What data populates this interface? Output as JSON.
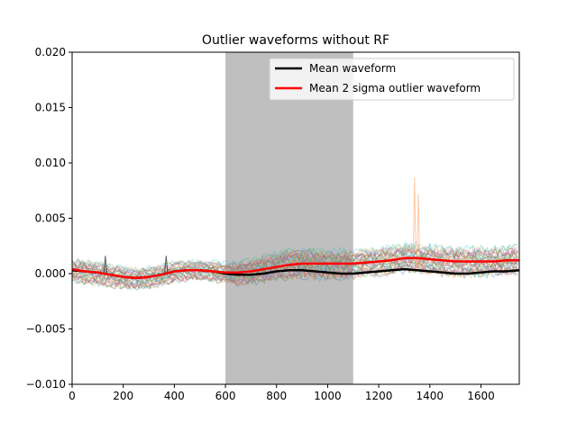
{
  "chart_data": {
    "type": "line",
    "title": "Outlier waveforms without RF",
    "xlabel": "",
    "ylabel": "",
    "xlim": [
      0,
      1750
    ],
    "ylim": [
      -0.01,
      0.02
    ],
    "x_ticks": [
      "0",
      "200",
      "400",
      "600",
      "800",
      "1000",
      "1200",
      "1400",
      "1600"
    ],
    "x_tick_values": [
      0,
      200,
      400,
      600,
      800,
      1000,
      1200,
      1400,
      1600
    ],
    "y_ticks": [
      "−0.010",
      "−0.005",
      "0.000",
      "0.005",
      "0.010",
      "0.015",
      "0.020"
    ],
    "y_tick_values": [
      -0.01,
      -0.005,
      0.0,
      0.005,
      0.01,
      0.015,
      0.02
    ],
    "grid": false,
    "legend_position": "top-right",
    "shaded_region": {
      "x_start": 600,
      "x_end": 1100,
      "color": "#bfbfbf"
    },
    "series": [
      {
        "name": "Mean waveform",
        "color": "#000000",
        "x": [
          0,
          50,
          100,
          150,
          200,
          250,
          300,
          350,
          400,
          450,
          500,
          550,
          600,
          650,
          700,
          750,
          800,
          850,
          900,
          950,
          1000,
          1050,
          1100,
          1150,
          1200,
          1250,
          1300,
          1350,
          1400,
          1450,
          1500,
          1550,
          1600,
          1650,
          1700,
          1750
        ],
        "y": [
          0.0003,
          0.0002,
          0.0001,
          -0.0001,
          -0.0003,
          -0.0004,
          -0.0003,
          -0.0001,
          0.0002,
          0.0003,
          0.0003,
          0.0002,
          0.0,
          -0.0001,
          -0.0001,
          0.0,
          0.0002,
          0.0003,
          0.0003,
          0.0002,
          0.0001,
          0.0,
          0.0,
          0.0001,
          0.0002,
          0.0003,
          0.0004,
          0.0003,
          0.0002,
          0.0001,
          0.0,
          0.0,
          0.0001,
          0.0002,
          0.0002,
          0.0003
        ]
      },
      {
        "name": "Mean 2 sigma outlier waveform",
        "color": "#ff0000",
        "x": [
          0,
          50,
          100,
          150,
          200,
          250,
          300,
          350,
          400,
          450,
          500,
          550,
          600,
          650,
          700,
          750,
          800,
          850,
          900,
          950,
          1000,
          1050,
          1100,
          1150,
          1200,
          1250,
          1300,
          1350,
          1400,
          1450,
          1500,
          1550,
          1600,
          1650,
          1700,
          1750
        ],
        "y": [
          0.0004,
          0.0002,
          0.0001,
          -0.0001,
          -0.0003,
          -0.0004,
          -0.0003,
          -0.0001,
          0.0002,
          0.0003,
          0.0003,
          0.0002,
          0.0001,
          0.0001,
          0.0002,
          0.0004,
          0.0006,
          0.0008,
          0.0009,
          0.0009,
          0.0009,
          0.0009,
          0.0009,
          0.001,
          0.0011,
          0.0012,
          0.0014,
          0.0014,
          0.0013,
          0.0012,
          0.0011,
          0.0011,
          0.0011,
          0.0011,
          0.0012,
          0.0012
        ]
      }
    ],
    "background_traces": {
      "colors": [
        "#1f77b4",
        "#ff7f0e",
        "#2ca02c",
        "#d62728",
        "#9467bd",
        "#8c564b",
        "#e377c2",
        "#7f7f7f",
        "#bcbd22",
        "#17becf"
      ],
      "band_low": [
        -0.0006,
        -0.0008,
        -0.0009,
        -0.0011,
        -0.0012,
        -0.0013,
        -0.0012,
        -0.001,
        -0.0007,
        -0.0005,
        -0.0005,
        -0.0006,
        -0.0008,
        -0.0009,
        -0.0008,
        -0.0006,
        -0.0004,
        -0.0003,
        -0.0002,
        -0.0003,
        -0.0003,
        -0.0003,
        -0.0002,
        -0.0001,
        0.0,
        0.0001,
        0.0002,
        0.0002,
        0.0001,
        0.0,
        -0.0001,
        -0.0001,
        -0.0001,
        0.0,
        0.0,
        0.0001
      ],
      "band_high": [
        0.0012,
        0.0011,
        0.0009,
        0.0007,
        0.0005,
        0.0004,
        0.0005,
        0.0007,
        0.001,
        0.0011,
        0.0011,
        0.001,
        0.0009,
        0.001,
        0.0012,
        0.0015,
        0.0018,
        0.002,
        0.0021,
        0.0021,
        0.002,
        0.002,
        0.002,
        0.0021,
        0.0022,
        0.0023,
        0.0025,
        0.0025,
        0.0024,
        0.0023,
        0.0022,
        0.0022,
        0.0022,
        0.0022,
        0.0023,
        0.0024
      ],
      "spikes": [
        {
          "x": 130,
          "y": 0.0016,
          "color": "#1a1a1a"
        },
        {
          "x": 368,
          "y": 0.0016,
          "color": "#1a1a1a"
        },
        {
          "x": 1340,
          "y": 0.0087,
          "color": "#ffb27a"
        },
        {
          "x": 1355,
          "y": 0.0072,
          "color": "#ffb27a"
        }
      ]
    }
  }
}
